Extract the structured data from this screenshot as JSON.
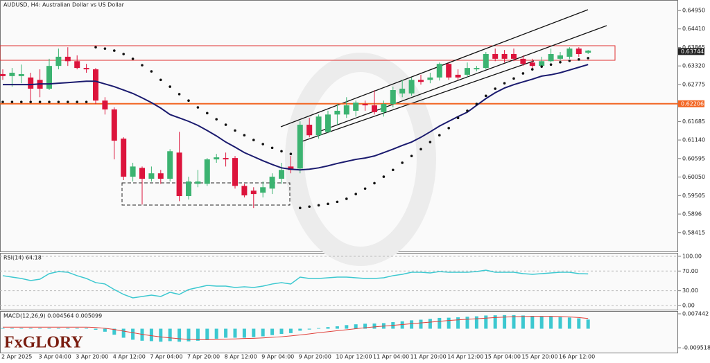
{
  "logo": "FxGLORY",
  "chart_data": [
    {
      "type": "candlestick",
      "title": "AUDUSD, H4:  Australian Dollar vs US Dollar",
      "categories": [
        "2 Apr 2025",
        null,
        null,
        null,
        "3 Apr 04:00",
        null,
        null,
        null,
        "3 Apr 20:00",
        null,
        null,
        null,
        "4 Apr 12:00",
        null,
        null,
        null,
        "7 Apr 04:00",
        null,
        null,
        null,
        "7 Apr 20:00",
        null,
        null,
        null,
        "8 Apr 12:00",
        null,
        null,
        null,
        "9 Apr 04:00",
        null,
        null,
        null,
        "9 Apr 20:00",
        null,
        null,
        null,
        "10 Apr 12:00",
        null,
        null,
        null,
        "11 Apr 04:00",
        null,
        null,
        null,
        "11 Apr 20:00",
        null,
        null,
        null,
        "14 Apr 12:00",
        null,
        null,
        null,
        "15 Apr 04:00",
        null,
        null,
        null,
        "15 Apr 20:00",
        null,
        null,
        null,
        "16 Apr 12:00",
        null,
        null,
        null
      ],
      "open": [
        0.6308,
        0.6302,
        0.6302,
        0.6298,
        0.6291,
        0.6265,
        0.6332,
        0.6359,
        0.6346,
        0.6326,
        0.6322,
        0.623,
        0.6204,
        0.6118,
        0.6006,
        0.6032,
        0.6,
        0.6016,
        0.6,
        0.6077,
        0.5949,
        0.5985,
        0.5985,
        0.6057,
        0.6061,
        0.6061,
        0.5979,
        0.5965,
        0.5959,
        0.5971,
        0.6,
        0.6036,
        0.603,
        0.6159,
        0.6128,
        0.6138,
        0.6189,
        0.6189,
        0.62,
        0.622,
        0.6216,
        0.6196,
        0.622,
        0.6251,
        0.6251,
        0.6291,
        0.6291,
        0.6298,
        0.6338,
        0.6306,
        0.6306,
        0.6322,
        0.6326,
        0.6367,
        0.6367,
        0.6367,
        0.6353,
        0.6342,
        0.6332,
        0.6346,
        0.6353,
        0.6359,
        0.6383,
        0.6371
      ],
      "high": [
        0.6322,
        0.6326,
        0.6336,
        0.6312,
        0.6322,
        0.6353,
        0.6383,
        0.6387,
        0.6363,
        0.6338,
        0.6326,
        0.624,
        0.621,
        0.6122,
        0.6047,
        0.6036,
        0.6036,
        0.6026,
        0.6087,
        0.6138,
        0.6006,
        0.6026,
        0.6061,
        0.6073,
        0.6077,
        0.6067,
        0.5985,
        0.5975,
        0.5992,
        0.6016,
        0.6047,
        0.6067,
        0.6169,
        0.6179,
        0.6189,
        0.62,
        0.622,
        0.624,
        0.623,
        0.623,
        0.6261,
        0.623,
        0.6271,
        0.6291,
        0.6298,
        0.6306,
        0.6312,
        0.6342,
        0.6342,
        0.6322,
        0.6342,
        0.6332,
        0.6373,
        0.6383,
        0.6379,
        0.6383,
        0.6363,
        0.6353,
        0.6359,
        0.6383,
        0.6373,
        0.6387,
        0.6387,
        0.6379
      ],
      "low": [
        0.6291,
        0.6271,
        0.6281,
        0.623,
        0.624,
        0.6261,
        0.6322,
        0.6332,
        0.6322,
        0.6312,
        0.622,
        0.6189,
        0.6057,
        0.5996,
        0.5992,
        0.5924,
        0.5992,
        0.5985,
        0.5992,
        0.5934,
        0.5939,
        0.5975,
        0.5979,
        0.6047,
        0.6036,
        0.5971,
        0.5945,
        0.5914,
        0.5945,
        0.5955,
        0.5985,
        0.6016,
        0.6016,
        0.6122,
        0.6118,
        0.6134,
        0.6159,
        0.6179,
        0.6183,
        0.62,
        0.6189,
        0.6183,
        0.621,
        0.624,
        0.6244,
        0.6277,
        0.6281,
        0.6289,
        0.6291,
        0.6291,
        0.6298,
        0.6316,
        0.6322,
        0.6346,
        0.6342,
        0.6346,
        0.6332,
        0.6322,
        0.6326,
        0.6342,
        0.6346,
        0.6353,
        0.6359,
        0.6367
      ],
      "close": [
        0.6302,
        0.6312,
        0.6308,
        0.6265,
        0.6265,
        0.6332,
        0.6359,
        0.6346,
        0.6326,
        0.6322,
        0.623,
        0.6204,
        0.6112,
        0.6006,
        0.6036,
        0.6,
        0.6016,
        0.6,
        0.6081,
        0.5949,
        0.5992,
        0.5992,
        0.6057,
        0.6063,
        0.6057,
        0.5979,
        0.5951,
        0.5955,
        0.5975,
        0.6006,
        0.6026,
        0.6026,
        0.6159,
        0.6128,
        0.6183,
        0.6189,
        0.62,
        0.6216,
        0.6224,
        0.6216,
        0.6196,
        0.622,
        0.6261,
        0.6265,
        0.6291,
        0.6285,
        0.6298,
        0.6338,
        0.6298,
        0.6298,
        0.6326,
        0.6326,
        0.6367,
        0.6353,
        0.6353,
        0.6353,
        0.6338,
        0.6332,
        0.6346,
        0.6367,
        0.6363,
        0.6383,
        0.6367,
        0.6377
      ],
      "up_color": "#3cb371",
      "down_color": "#dc143c",
      "ma": {
        "color": "#1a1a6e",
        "values": [
          0.6277,
          0.6277,
          0.6277,
          0.6277,
          0.6279,
          0.6279,
          0.6281,
          0.6283,
          0.6285,
          0.6287,
          0.6287,
          0.6279,
          0.6271,
          0.6261,
          0.6251,
          0.6238,
          0.6224,
          0.6208,
          0.6189,
          0.6179,
          0.6169,
          0.6157,
          0.6142,
          0.6126,
          0.6108,
          0.6093,
          0.6077,
          0.6065,
          0.6053,
          0.6042,
          0.6032,
          0.6028,
          0.6026,
          0.6028,
          0.6032,
          0.6038,
          0.6045,
          0.6051,
          0.6057,
          0.6061,
          0.6067,
          0.6077,
          0.6087,
          0.6098,
          0.6108,
          0.6122,
          0.6138,
          0.6155,
          0.6169,
          0.6183,
          0.6196,
          0.6216,
          0.6236,
          0.6253,
          0.6267,
          0.6277,
          0.6285,
          0.6293,
          0.6302,
          0.6306,
          0.6312,
          0.632,
          0.6328,
          0.6336
        ]
      },
      "sar": {
        "color": "#111111",
        "values": [
          0.6226,
          0.6226,
          0.6226,
          0.6226,
          0.6226,
          0.6226,
          0.6226,
          0.6226,
          0.6226,
          0.6226,
          0.6387,
          0.6383,
          0.6377,
          0.6367,
          0.6353,
          0.6334,
          0.6316,
          0.6291,
          0.6271,
          0.6249,
          0.623,
          0.621,
          0.6193,
          0.6175,
          0.6159,
          0.6142,
          0.6128,
          0.6114,
          0.6102,
          0.6091,
          0.6081,
          0.6073,
          0.5914,
          0.5918,
          0.5922,
          0.5926,
          0.5932,
          0.5941,
          0.5955,
          0.5971,
          0.5987,
          0.6006,
          0.6026,
          0.6047,
          0.6067,
          0.6087,
          0.6108,
          0.6128,
          0.6149,
          0.6179,
          0.62,
          0.622,
          0.6244,
          0.6265,
          0.6281,
          0.6295,
          0.631,
          0.6322,
          0.633,
          0.6336,
          0.6343,
          0.6347,
          0.6351,
          0.6355
        ]
      },
      "level": {
        "value": 0.62206,
        "color": "#f26522"
      },
      "last_price": 0.63744,
      "ylim": [
        0.5786,
        0.6526
      ],
      "yticks": [
        {
          "value": 0.6495,
          "label": "0.64950"
        },
        {
          "value": 0.6441,
          "label": "0.64410"
        },
        0.63865,
        {
          "value": 0.6332,
          "label": "0.63320"
        },
        0.62775,
        0.61685,
        {
          "value": 0.6114,
          "label": "0.61140"
        },
        0.60595,
        {
          "value": 0.6005,
          "label": "0.60050"
        },
        0.59505,
        0.5896,
        0.58415
      ],
      "grid": false
    },
    {
      "type": "line",
      "title": "RSI(14) 64.18",
      "color": "#3cc8d0",
      "values": [
        60.6,
        57.7,
        54.9,
        50.7,
        53.5,
        64.8,
        69.0,
        67.6,
        60.6,
        54.9,
        46.5,
        43.7,
        32.4,
        22.5,
        15.5,
        18.3,
        21.1,
        18.3,
        26.8,
        22.5,
        32.4,
        36.6,
        40.8,
        39.4,
        39.4,
        36.6,
        38.0,
        36.6,
        39.4,
        43.7,
        46.5,
        43.7,
        57.7,
        54.9,
        54.9,
        56.3,
        57.7,
        57.7,
        56.3,
        54.9,
        54.9,
        56.3,
        60.6,
        63.4,
        67.6,
        67.6,
        66.2,
        69.0,
        67.6,
        67.6,
        67.6,
        69.0,
        71.8,
        67.6,
        67.6,
        67.6,
        64.8,
        63.4,
        64.8,
        66.2,
        67.6,
        67.6,
        64.8,
        64.18
      ],
      "ylim": [
        -8.5,
        107
      ],
      "yticks": [
        {
          "value": 100,
          "label": "100.00"
        },
        {
          "value": 70,
          "label": "70.00"
        },
        {
          "value": 30,
          "label": "30.00"
        },
        {
          "value": 0,
          "label": "0.00"
        }
      ],
      "grid": true
    },
    {
      "type": "macd",
      "title": "MACD(12,26,9) 0.004564 0.005099",
      "histogram": {
        "color": "#3cc8d0",
        "values": [
          0.0003,
          0.0003,
          0.0003,
          0.0003,
          0.0003,
          0.0003,
          0.0003,
          0.0003,
          0.0003,
          0.0003,
          -0.0005,
          -0.0015,
          -0.003,
          -0.0045,
          -0.0055,
          -0.006,
          -0.0062,
          -0.0065,
          -0.0062,
          -0.0065,
          -0.0063,
          -0.006,
          -0.0055,
          -0.005,
          -0.0045,
          -0.0045,
          -0.0045,
          -0.0042,
          -0.0038,
          -0.0032,
          -0.0026,
          -0.0022,
          -0.001,
          -0.0004,
          0.0003,
          0.0008,
          0.0012,
          0.0018,
          0.0022,
          0.0025,
          0.0026,
          0.0028,
          0.0033,
          0.0037,
          0.0042,
          0.0045,
          0.0049,
          0.0054,
          0.0055,
          0.0057,
          0.006,
          0.0062,
          0.0066,
          0.0067,
          0.0068,
          0.0068,
          0.0066,
          0.0064,
          0.0062,
          0.0061,
          0.0058,
          0.0056,
          0.0052,
          0.004564
        ]
      },
      "signal": {
        "color": "#e0403a",
        "values": [
          0.0008,
          0.0008,
          0.0008,
          0.0008,
          0.0008,
          0.0008,
          0.0008,
          0.0008,
          0.0008,
          0.0008,
          0.0006,
          0.0002,
          -0.0004,
          -0.0012,
          -0.002,
          -0.0028,
          -0.0035,
          -0.0041,
          -0.0046,
          -0.005,
          -0.0053,
          -0.0055,
          -0.0055,
          -0.0054,
          -0.0052,
          -0.0051,
          -0.0049,
          -0.0048,
          -0.0046,
          -0.0043,
          -0.004,
          -0.0036,
          -0.0031,
          -0.0026,
          -0.002,
          -0.0015,
          -0.001,
          -0.0005,
          0.0,
          0.0005,
          0.0009,
          0.0013,
          0.0017,
          0.0021,
          0.0025,
          0.0029,
          0.0033,
          0.0037,
          0.0041,
          0.0044,
          0.0047,
          0.005,
          0.0053,
          0.0056,
          0.0058,
          0.006,
          0.0061,
          0.0062,
          0.0062,
          0.0062,
          0.0061,
          0.0059,
          0.0056,
          0.005099
        ]
      },
      "ylim": [
        -0.01194,
        0.00883
      ],
      "yticks": [
        0.007442,
        -0.009518
      ],
      "grid": false
    }
  ]
}
